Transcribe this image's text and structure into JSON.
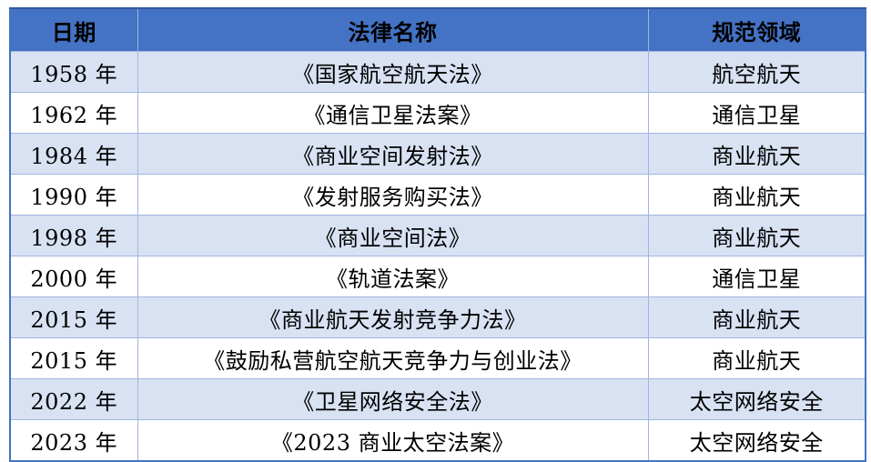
{
  "chart_data": {
    "type": "table",
    "title": "",
    "columns": [
      "日期",
      "法律名称",
      "规范领域"
    ],
    "rows": [
      [
        "1958 年",
        "《国家航空航天法》",
        "航空航天"
      ],
      [
        "1962 年",
        "《通信卫星法案》",
        "通信卫星"
      ],
      [
        "1984 年",
        "《商业空间发射法》",
        "商业航天"
      ],
      [
        "1990 年",
        "《发射服务购买法》",
        "商业航天"
      ],
      [
        "1998 年",
        "《商业空间法》",
        "商业航天"
      ],
      [
        "2000 年",
        "《轨道法案》",
        "通信卫星"
      ],
      [
        "2015 年",
        "《商业航天发射竞争力法》",
        "商业航天"
      ],
      [
        "2015 年",
        "《鼓励私营航空航天竞争力与创业法》",
        "商业航天"
      ],
      [
        "2022 年",
        "《卫星网络安全法》",
        "太空网络安全"
      ],
      [
        "2023 年",
        "《2023 商业太空法案》",
        "太空网络安全"
      ]
    ],
    "layout": {
      "banded_rows": true,
      "header_fill": true,
      "text_align": "center"
    }
  },
  "colors": {
    "header_bg": "#4472C4",
    "band_bg": "#D9E2F3",
    "grid_line": "#9FB5E0",
    "outer_border": "#4472C4",
    "header_top_border": "#35599F",
    "text": "#000000"
  }
}
